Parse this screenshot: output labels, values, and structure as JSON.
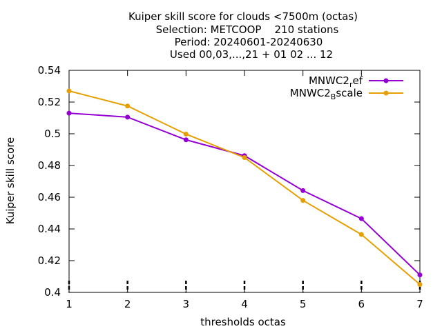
{
  "chart_data": {
    "type": "line",
    "title_lines": [
      "Kuiper skill score  for clouds <7500m (octas)",
      "Selection: METCOOP    210 stations",
      "Period: 20240601-20240630",
      "Used 00,03,...,21 + 01 02 ... 12"
    ],
    "xlabel": "thresholds octas",
    "ylabel": "Kuiper skill score",
    "x": [
      1,
      2,
      3,
      4,
      5,
      6,
      7
    ],
    "xlim": [
      1,
      7
    ],
    "ylim": [
      0.4,
      0.54
    ],
    "xticks": [
      1,
      2,
      3,
      4,
      5,
      6,
      7
    ],
    "yticks": [
      0.4,
      0.42,
      0.44,
      0.46,
      0.48,
      0.5,
      0.52,
      0.54
    ],
    "ytick_labels": [
      "0.4",
      "0.42",
      "0.44",
      "0.46",
      "0.48",
      "0.5",
      "0.52",
      "0.54"
    ],
    "grid": false,
    "legend_position": "top-right",
    "series": [
      {
        "name": "MNWC2_ref",
        "label_base": "MNWC2",
        "label_sub": "r",
        "label_rest": "ef",
        "color": "#9400d3",
        "values": [
          0.513,
          0.5105,
          0.4962,
          0.4862,
          0.4642,
          0.4465,
          0.411
        ]
      },
      {
        "name": "MNWC2_Bscale",
        "label_base": "MNWC2",
        "label_sub": "B",
        "label_rest": "scale",
        "color": "#e69f00",
        "values": [
          0.527,
          0.5175,
          0.4998,
          0.485,
          0.458,
          0.4365,
          0.405
        ]
      }
    ]
  }
}
